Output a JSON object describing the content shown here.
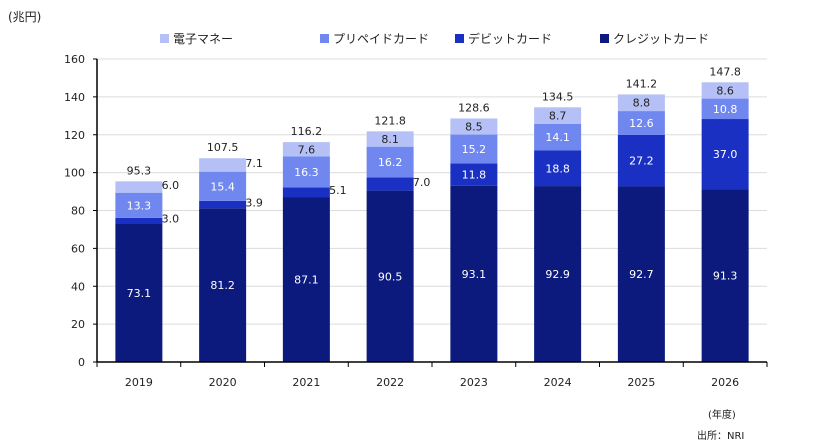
{
  "chart_data": {
    "type": "bar",
    "stacked": true,
    "ylabel": "(兆円)",
    "xlabel": "(年度)",
    "source": "出所：NRI",
    "ylim": [
      0,
      160
    ],
    "yticks": [
      0,
      20,
      40,
      60,
      80,
      100,
      120,
      140,
      160
    ],
    "grid": true,
    "legend": "top",
    "categories": [
      "2019",
      "2020",
      "2021",
      "2022",
      "2023",
      "2024",
      "2025",
      "2026"
    ],
    "series": [
      {
        "name": "クレジットカード",
        "color": "#0b1a7c",
        "values": [
          73.1,
          81.2,
          87.1,
          90.5,
          93.1,
          92.9,
          92.7,
          91.3
        ]
      },
      {
        "name": "デビットカード",
        "color": "#1a30c2",
        "values": [
          3.0,
          3.9,
          5.1,
          7.0,
          11.8,
          18.8,
          27.2,
          37.0
        ]
      },
      {
        "name": "プリペイドカード",
        "color": "#6f87ee",
        "values": [
          13.3,
          15.4,
          16.3,
          16.2,
          15.2,
          14.1,
          12.6,
          10.8
        ]
      },
      {
        "name": "電子マネー",
        "color": "#b5c1f6",
        "values": [
          6.0,
          7.1,
          7.6,
          8.1,
          8.5,
          8.7,
          8.8,
          8.6
        ]
      }
    ],
    "totals": [
      "95.3",
      "107.5",
      "116.2",
      "121.8",
      "128.6",
      "134.5",
      "141.2",
      "147.8"
    ],
    "legend_order": [
      "電子マネー",
      "プリペイドカード",
      "デビットカード",
      "クレジットカード"
    ]
  }
}
